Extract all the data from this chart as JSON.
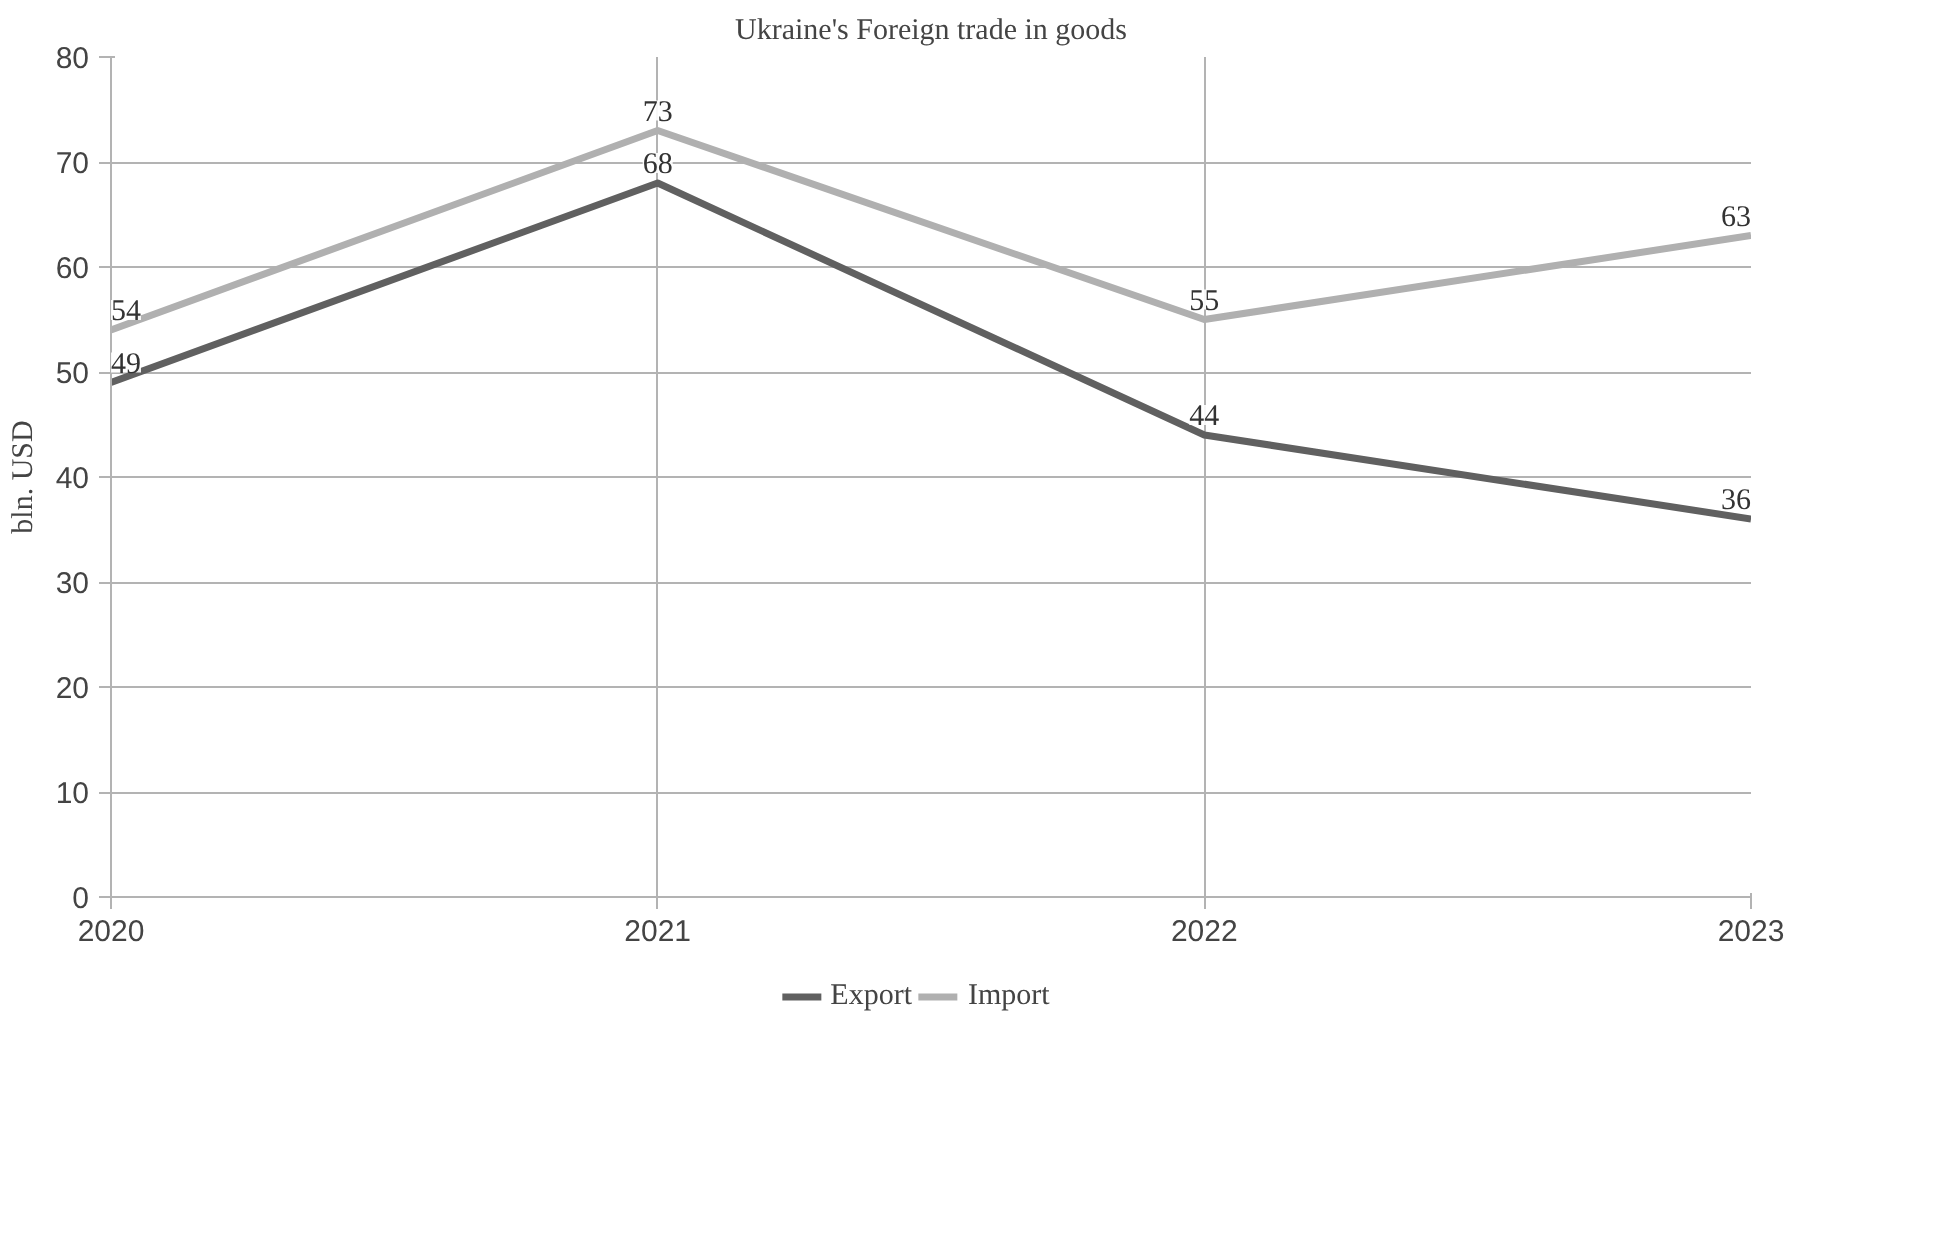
{
  "chart_data": {
    "type": "line",
    "title": "Ukraine's Foreign trade in goods",
    "ylabel": "bln. USD",
    "x": [
      2020,
      2021,
      2022,
      2023
    ],
    "xlim": [
      2020,
      2023
    ],
    "xticks": [
      2020,
      2021,
      2022,
      2023
    ],
    "ylim": [
      0,
      80
    ],
    "yticks": [
      0,
      10,
      20,
      30,
      40,
      50,
      60,
      70,
      80
    ],
    "series": [
      {
        "name": "Export",
        "color": "#606060",
        "values": [
          49,
          68,
          44,
          36
        ]
      },
      {
        "name": "Import",
        "color": "#b0b0b0",
        "values": [
          54,
          73,
          55,
          63
        ]
      }
    ],
    "grid": true,
    "legend": "bottom",
    "data_labels": true,
    "marker": "none",
    "line_style": "solid"
  }
}
